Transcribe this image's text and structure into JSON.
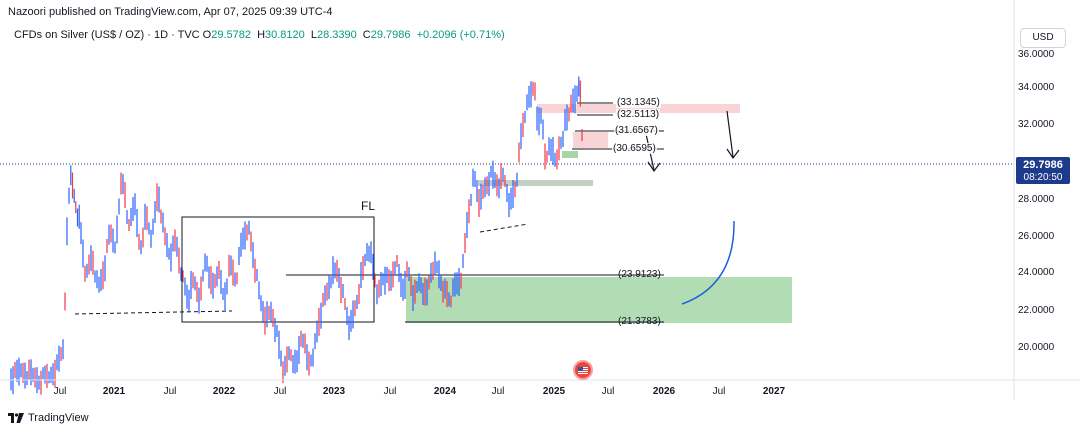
{
  "header": {
    "published_line": "Nazoori published on TradingView.com, Apr 07, 2025 09:39 UTC-4"
  },
  "legend": {
    "symbol": "CFDs on Silver (US$ / OZ) · 1D · TVC",
    "o_label": "O",
    "o_value": "29.5782",
    "h_label": "H",
    "h_value": "30.8120",
    "l_label": "L",
    "l_value": "28.3390",
    "c_label": "C",
    "c_value": "29.7986",
    "change": "+0.2096 (+0.71%)"
  },
  "currency_button": "USD",
  "price_axis": {
    "labels": [
      "36.0000",
      "34.0000",
      "32.0000",
      "28.0000",
      "26.0000",
      "24.0000",
      "22.0000",
      "20.0000"
    ],
    "current_price": "29.7986",
    "countdown": "08:20:50"
  },
  "time_axis": {
    "labels": [
      {
        "text": "Jul",
        "year": false
      },
      {
        "text": "2021",
        "year": true
      },
      {
        "text": "Jul",
        "year": false
      },
      {
        "text": "2022",
        "year": true
      },
      {
        "text": "Jul",
        "year": false
      },
      {
        "text": "2023",
        "year": true
      },
      {
        "text": "Jul",
        "year": false
      },
      {
        "text": "2024",
        "year": true
      },
      {
        "text": "Jul",
        "year": false
      },
      {
        "text": "2025",
        "year": true
      },
      {
        "text": "Jul",
        "year": false
      },
      {
        "text": "2026",
        "year": true
      },
      {
        "text": "Jul",
        "year": false
      },
      {
        "text": "2027",
        "year": true
      }
    ]
  },
  "annotations": {
    "levels": [
      "(33.1345)",
      "(32.5113)",
      "(31.6567)",
      "(30.6595)",
      "(23.9123)",
      "(21.3783)"
    ],
    "fl_label": "FL"
  },
  "colors": {
    "up": "#089981",
    "down": "#f23645",
    "candle_blue": "#2962ff",
    "candle_red": "#f23645",
    "green_zone": "#a5d6a7",
    "pink_zone": "#f8c9cc",
    "badge": "#1e3a8a"
  },
  "icons": [
    "tradingview-logo-icon",
    "us-flag-icon",
    "arrow-down-icon",
    "curve-arrow-icon"
  ],
  "footer": {
    "brand": "TradingView"
  }
}
